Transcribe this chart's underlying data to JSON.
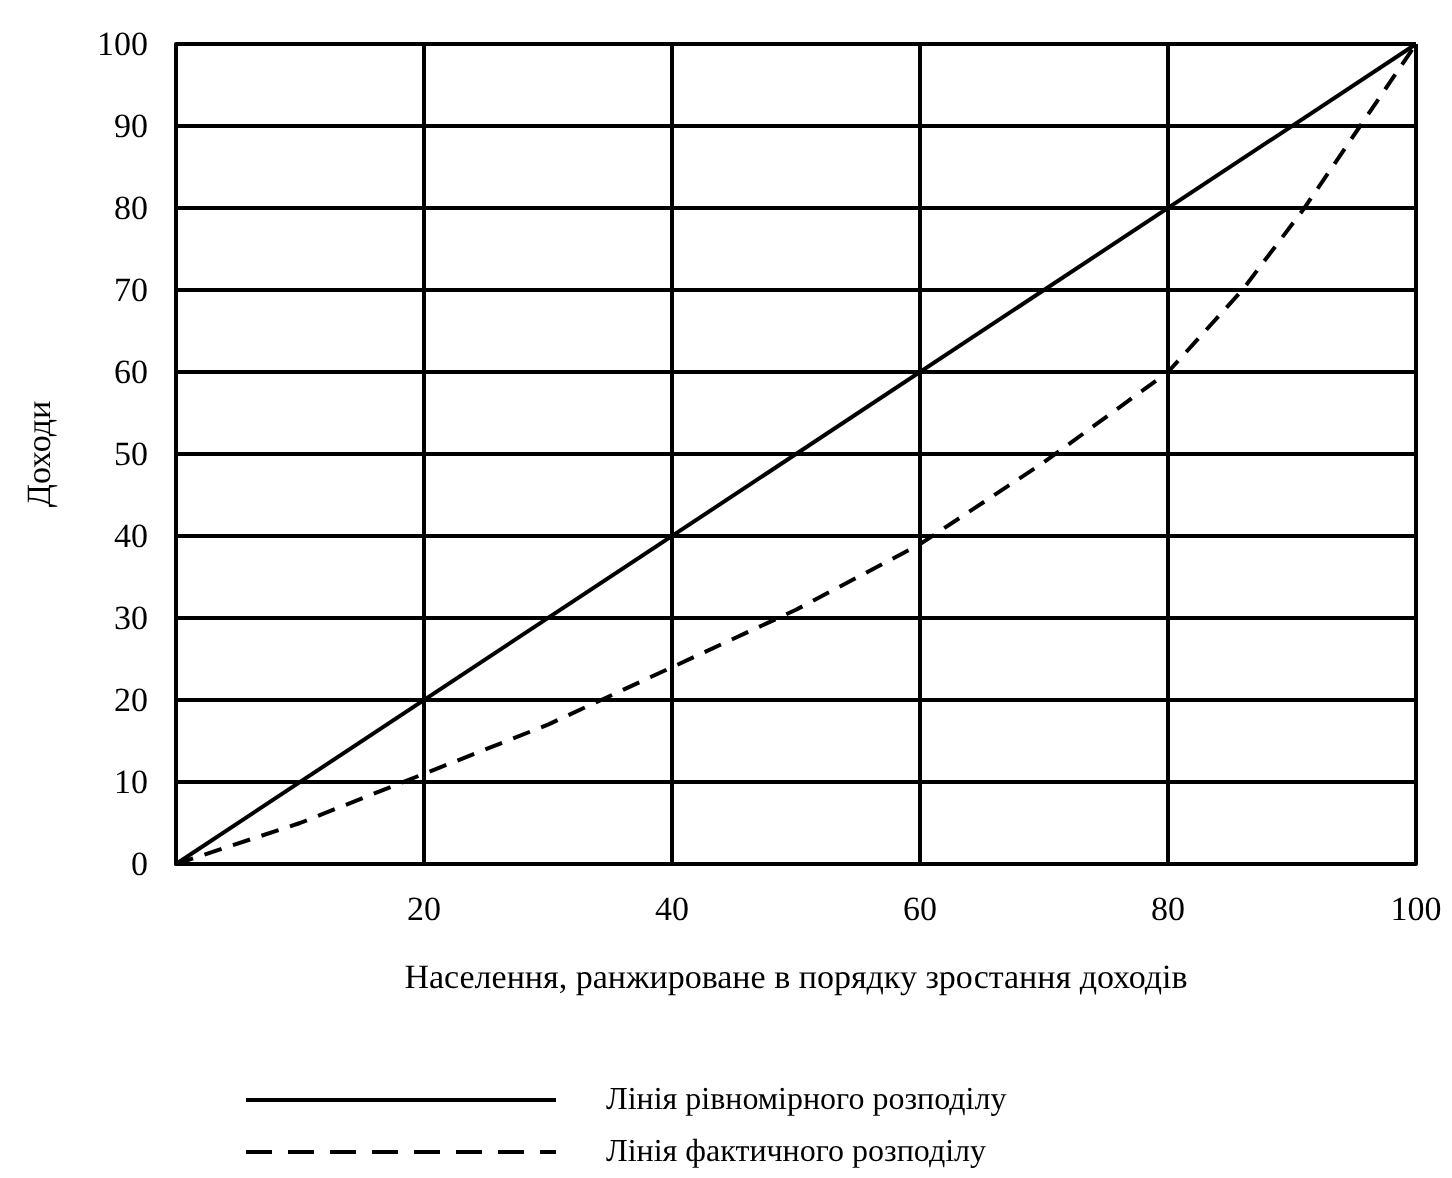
{
  "chart_data": {
    "type": "line",
    "xlabel": "Населення, ранжироване в порядку зростання доходів",
    "ylabel": "Доходи",
    "xlim": [
      0,
      100
    ],
    "ylim": [
      0,
      100
    ],
    "xticks": [
      20,
      40,
      60,
      80,
      100
    ],
    "yticks": [
      0,
      10,
      20,
      30,
      40,
      50,
      60,
      70,
      80,
      90,
      100
    ],
    "grid": true,
    "legend": "bottom",
    "marker": "none",
    "series": [
      {
        "name": "Лінія рівномірного розподілу",
        "color": "#000000",
        "line_style": "solid",
        "x": [
          0,
          100
        ],
        "values": [
          0,
          100
        ]
      },
      {
        "name": "Лінія фактичного розподілу",
        "color": "#000000",
        "line_style": "dashed",
        "x": [
          0,
          10,
          20,
          30,
          40,
          50,
          60,
          70,
          80,
          86,
          91,
          95.5,
          100
        ],
        "values": [
          0,
          5,
          11,
          17,
          24,
          31,
          39,
          49,
          60,
          70,
          80,
          90,
          100
        ]
      }
    ]
  }
}
